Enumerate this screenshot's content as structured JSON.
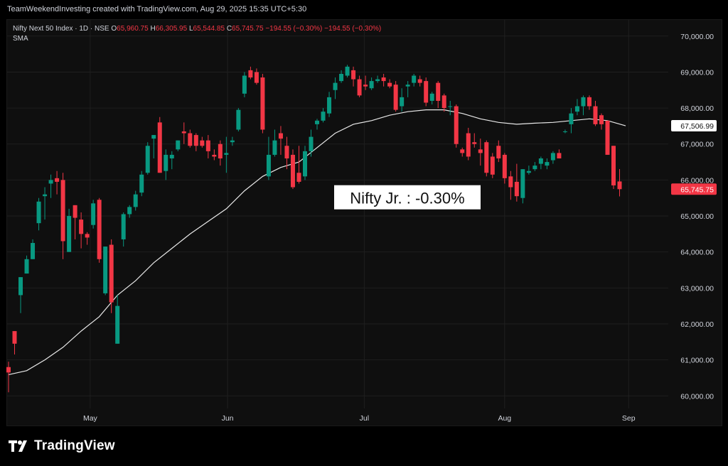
{
  "caption": "TeamWeekendInvesting created with TradingView.com, Aug 29, 2025 15:35 UTC+5:30",
  "legend": {
    "symbol": "Nifty Next 50 Index · 1D · NSE",
    "open_label": "O",
    "open": "65,960.75",
    "high_label": "H",
    "high": "66,305.95",
    "low_label": "L",
    "low": "65,544.85",
    "close_label": "C",
    "close": "65,745.75",
    "change": "−194.55 (−0.30%)",
    "change2": "−194.55 (−0.30%)",
    "indicator": "SMA"
  },
  "brand": "TradingView",
  "colors": {
    "up": "#089981",
    "down": "#f23645",
    "sma": "#e8e8e8",
    "background": "#0f0f0f",
    "grid": "#1f1f1f"
  },
  "chart_data": {
    "type": "candlestick",
    "title": "Nifty Jr. : -0.30%",
    "y_ticks": [
      "70,000.00",
      "69,000.00",
      "68,000.00",
      "67,000.00",
      "66,000.00",
      "65,000.00",
      "64,000.00",
      "63,000.00",
      "62,000.00",
      "61,000.00",
      "60,000.00"
    ],
    "ylim": [
      59650,
      70450
    ],
    "x_ticks": [
      "May",
      "Jun",
      "Jul",
      "Aug",
      "Sep"
    ],
    "last_price_label": "65,745.75",
    "sma_label": "67,506.99",
    "sma_last": 67507,
    "candles": [
      {
        "o": 60800,
        "h": 60950,
        "l": 60100,
        "c": 60650
      },
      {
        "o": 61800,
        "h": 61800,
        "l": 61150,
        "c": 61450
      },
      {
        "o": 62800,
        "h": 63300,
        "l": 62300,
        "c": 63300
      },
      {
        "o": 63400,
        "h": 63900,
        "l": 63400,
        "c": 63800
      },
      {
        "o": 63800,
        "h": 64350,
        "l": 63800,
        "c": 64250
      },
      {
        "o": 64800,
        "h": 65500,
        "l": 64600,
        "c": 65400
      },
      {
        "o": 65550,
        "h": 65800,
        "l": 64900,
        "c": 65600
      },
      {
        "o": 65900,
        "h": 66150,
        "l": 65500,
        "c": 66000
      },
      {
        "o": 66050,
        "h": 66250,
        "l": 65600,
        "c": 65950
      },
      {
        "o": 66000,
        "h": 66200,
        "l": 63800,
        "c": 64300
      },
      {
        "o": 64000,
        "h": 65200,
        "l": 64000,
        "c": 65000
      },
      {
        "o": 65300,
        "h": 65300,
        "l": 64350,
        "c": 64950
      },
      {
        "o": 64900,
        "h": 65100,
        "l": 64100,
        "c": 64500
      },
      {
        "o": 64500,
        "h": 64550,
        "l": 64200,
        "c": 64400
      },
      {
        "o": 64750,
        "h": 65450,
        "l": 64650,
        "c": 65350
      },
      {
        "o": 65450,
        "h": 65500,
        "l": 63700,
        "c": 63800
      },
      {
        "o": 62850,
        "h": 64150,
        "l": 62800,
        "c": 64150
      },
      {
        "o": 64200,
        "h": 64350,
        "l": 62300,
        "c": 62600
      },
      {
        "o": 61450,
        "h": 62800,
        "l": 61450,
        "c": 62500
      },
      {
        "o": 64350,
        "h": 65100,
        "l": 64150,
        "c": 65050
      },
      {
        "o": 65050,
        "h": 65300,
        "l": 64950,
        "c": 65250
      },
      {
        "o": 65250,
        "h": 65700,
        "l": 65150,
        "c": 65600
      },
      {
        "o": 65650,
        "h": 66250,
        "l": 65550,
        "c": 66150
      },
      {
        "o": 66200,
        "h": 67050,
        "l": 66150,
        "c": 66950
      },
      {
        "o": 67150,
        "h": 67250,
        "l": 66600,
        "c": 67250
      },
      {
        "o": 67600,
        "h": 67750,
        "l": 66200,
        "c": 66200
      },
      {
        "o": 66250,
        "h": 66850,
        "l": 66000,
        "c": 66700
      },
      {
        "o": 66600,
        "h": 66800,
        "l": 66300,
        "c": 66700
      },
      {
        "o": 66850,
        "h": 67100,
        "l": 66800,
        "c": 67100
      },
      {
        "o": 67350,
        "h": 67600,
        "l": 67000,
        "c": 67300
      },
      {
        "o": 67300,
        "h": 67400,
        "l": 66900,
        "c": 66950
      },
      {
        "o": 67250,
        "h": 67300,
        "l": 66800,
        "c": 66950
      },
      {
        "o": 67100,
        "h": 67200,
        "l": 66900,
        "c": 66950
      },
      {
        "o": 67100,
        "h": 67250,
        "l": 66600,
        "c": 66800
      },
      {
        "o": 66700,
        "h": 66850,
        "l": 66550,
        "c": 66650
      },
      {
        "o": 67000,
        "h": 67100,
        "l": 66400,
        "c": 66600
      },
      {
        "o": 66700,
        "h": 67200,
        "l": 66200,
        "c": 66750
      },
      {
        "o": 67050,
        "h": 67200,
        "l": 66950,
        "c": 67100
      },
      {
        "o": 67400,
        "h": 68000,
        "l": 67350,
        "c": 67950
      },
      {
        "o": 68400,
        "h": 69000,
        "l": 68300,
        "c": 68900
      },
      {
        "o": 69050,
        "h": 69150,
        "l": 68800,
        "c": 68850
      },
      {
        "o": 69000,
        "h": 69100,
        "l": 68650,
        "c": 68700
      },
      {
        "o": 68850,
        "h": 68950,
        "l": 67300,
        "c": 67400
      },
      {
        "o": 66100,
        "h": 67200,
        "l": 66000,
        "c": 66700
      },
      {
        "o": 66700,
        "h": 67400,
        "l": 66650,
        "c": 67100
      },
      {
        "o": 67300,
        "h": 67500,
        "l": 66700,
        "c": 67150
      },
      {
        "o": 66950,
        "h": 67200,
        "l": 66300,
        "c": 66600
      },
      {
        "o": 66700,
        "h": 66850,
        "l": 65750,
        "c": 65800
      },
      {
        "o": 66200,
        "h": 66950,
        "l": 65900,
        "c": 65950
      },
      {
        "o": 66100,
        "h": 66950,
        "l": 66000,
        "c": 66800
      },
      {
        "o": 66800,
        "h": 67400,
        "l": 66650,
        "c": 67200
      },
      {
        "o": 67550,
        "h": 67700,
        "l": 67400,
        "c": 67650
      },
      {
        "o": 67650,
        "h": 68000,
        "l": 67600,
        "c": 67900
      },
      {
        "o": 67850,
        "h": 68450,
        "l": 67750,
        "c": 68300
      },
      {
        "o": 68500,
        "h": 68850,
        "l": 68250,
        "c": 68700
      },
      {
        "o": 68750,
        "h": 69050,
        "l": 68700,
        "c": 68950
      },
      {
        "o": 68900,
        "h": 69200,
        "l": 68850,
        "c": 69150
      },
      {
        "o": 69050,
        "h": 69150,
        "l": 68600,
        "c": 68800
      },
      {
        "o": 68800,
        "h": 68900,
        "l": 68300,
        "c": 68350
      },
      {
        "o": 68650,
        "h": 68900,
        "l": 68500,
        "c": 68600
      },
      {
        "o": 68550,
        "h": 68850,
        "l": 68500,
        "c": 68750
      },
      {
        "o": 68750,
        "h": 68900,
        "l": 68700,
        "c": 68800
      },
      {
        "o": 68850,
        "h": 68950,
        "l": 68600,
        "c": 68750
      },
      {
        "o": 68700,
        "h": 68800,
        "l": 68550,
        "c": 68600
      },
      {
        "o": 68650,
        "h": 68750,
        "l": 67900,
        "c": 67950
      },
      {
        "o": 68050,
        "h": 68550,
        "l": 67900,
        "c": 68300
      },
      {
        "o": 68600,
        "h": 68750,
        "l": 68300,
        "c": 68650
      },
      {
        "o": 68700,
        "h": 68950,
        "l": 68600,
        "c": 68900
      },
      {
        "o": 68800,
        "h": 68900,
        "l": 68600,
        "c": 68700
      },
      {
        "o": 68750,
        "h": 68850,
        "l": 68050,
        "c": 68150
      },
      {
        "o": 68200,
        "h": 68450,
        "l": 68100,
        "c": 68400
      },
      {
        "o": 68700,
        "h": 68750,
        "l": 68000,
        "c": 68200
      },
      {
        "o": 68350,
        "h": 68400,
        "l": 67900,
        "c": 68000
      },
      {
        "o": 68050,
        "h": 68200,
        "l": 67800,
        "c": 68050
      },
      {
        "o": 68050,
        "h": 68100,
        "l": 66900,
        "c": 67000
      },
      {
        "o": 66850,
        "h": 66900,
        "l": 66650,
        "c": 66750
      },
      {
        "o": 67300,
        "h": 67450,
        "l": 66550,
        "c": 66650
      },
      {
        "o": 67050,
        "h": 67300,
        "l": 66900,
        "c": 67000
      },
      {
        "o": 66850,
        "h": 67150,
        "l": 66400,
        "c": 66750
      },
      {
        "o": 67050,
        "h": 67100,
        "l": 66100,
        "c": 66200
      },
      {
        "o": 66650,
        "h": 66750,
        "l": 66050,
        "c": 66150
      },
      {
        "o": 66950,
        "h": 67100,
        "l": 66500,
        "c": 66600
      },
      {
        "o": 66700,
        "h": 66750,
        "l": 65900,
        "c": 66050
      },
      {
        "o": 66100,
        "h": 66250,
        "l": 65450,
        "c": 65800
      },
      {
        "o": 65950,
        "h": 66450,
        "l": 65400,
        "c": 65550
      },
      {
        "o": 65500,
        "h": 66300,
        "l": 65350,
        "c": 66300
      },
      {
        "o": 66200,
        "h": 66400,
        "l": 66150,
        "c": 66250
      },
      {
        "o": 66300,
        "h": 66500,
        "l": 66250,
        "c": 66400
      },
      {
        "o": 66450,
        "h": 66650,
        "l": 66300,
        "c": 66600
      },
      {
        "o": 66400,
        "h": 66600,
        "l": 66300,
        "c": 66500
      },
      {
        "o": 66550,
        "h": 66800,
        "l": 66450,
        "c": 66750
      },
      {
        "o": 66750,
        "h": 66850,
        "l": 66600,
        "c": 66600
      },
      {
        "o": 67350,
        "h": 67400,
        "l": 67300,
        "c": 67350
      },
      {
        "o": 67550,
        "h": 68000,
        "l": 67300,
        "c": 67850
      },
      {
        "o": 67900,
        "h": 68250,
        "l": 67800,
        "c": 68050
      },
      {
        "o": 68050,
        "h": 68350,
        "l": 67800,
        "c": 68300
      },
      {
        "o": 68300,
        "h": 68350,
        "l": 67950,
        "c": 68050
      },
      {
        "o": 68050,
        "h": 68200,
        "l": 67500,
        "c": 67550
      },
      {
        "o": 67800,
        "h": 67850,
        "l": 67400,
        "c": 67550
      },
      {
        "o": 67650,
        "h": 67650,
        "l": 66700,
        "c": 66700
      },
      {
        "o": 66950,
        "h": 66950,
        "l": 65750,
        "c": 65850
      },
      {
        "o": 65960,
        "h": 66305,
        "l": 65544,
        "c": 65745
      }
    ],
    "sma": [
      [
        0,
        60590
      ],
      [
        3,
        60700
      ],
      [
        6,
        61000
      ],
      [
        9,
        61350
      ],
      [
        12,
        61800
      ],
      [
        15,
        62200
      ],
      [
        18,
        62800
      ],
      [
        21,
        63200
      ],
      [
        24,
        63700
      ],
      [
        27,
        64100
      ],
      [
        30,
        64500
      ],
      [
        33,
        64850
      ],
      [
        36,
        65200
      ],
      [
        39,
        65700
      ],
      [
        42,
        66100
      ],
      [
        45,
        66350
      ],
      [
        48,
        66500
      ],
      [
        51,
        66900
      ],
      [
        54,
        67300
      ],
      [
        57,
        67550
      ],
      [
        60,
        67650
      ],
      [
        63,
        67800
      ],
      [
        66,
        67900
      ],
      [
        69,
        67950
      ],
      [
        72,
        67950
      ],
      [
        75,
        67850
      ],
      [
        78,
        67700
      ],
      [
        81,
        67600
      ],
      [
        84,
        67550
      ],
      [
        87,
        67580
      ],
      [
        90,
        67600
      ],
      [
        93,
        67650
      ],
      [
        96,
        67700
      ],
      [
        99,
        67650
      ],
      [
        102,
        67507
      ]
    ]
  }
}
